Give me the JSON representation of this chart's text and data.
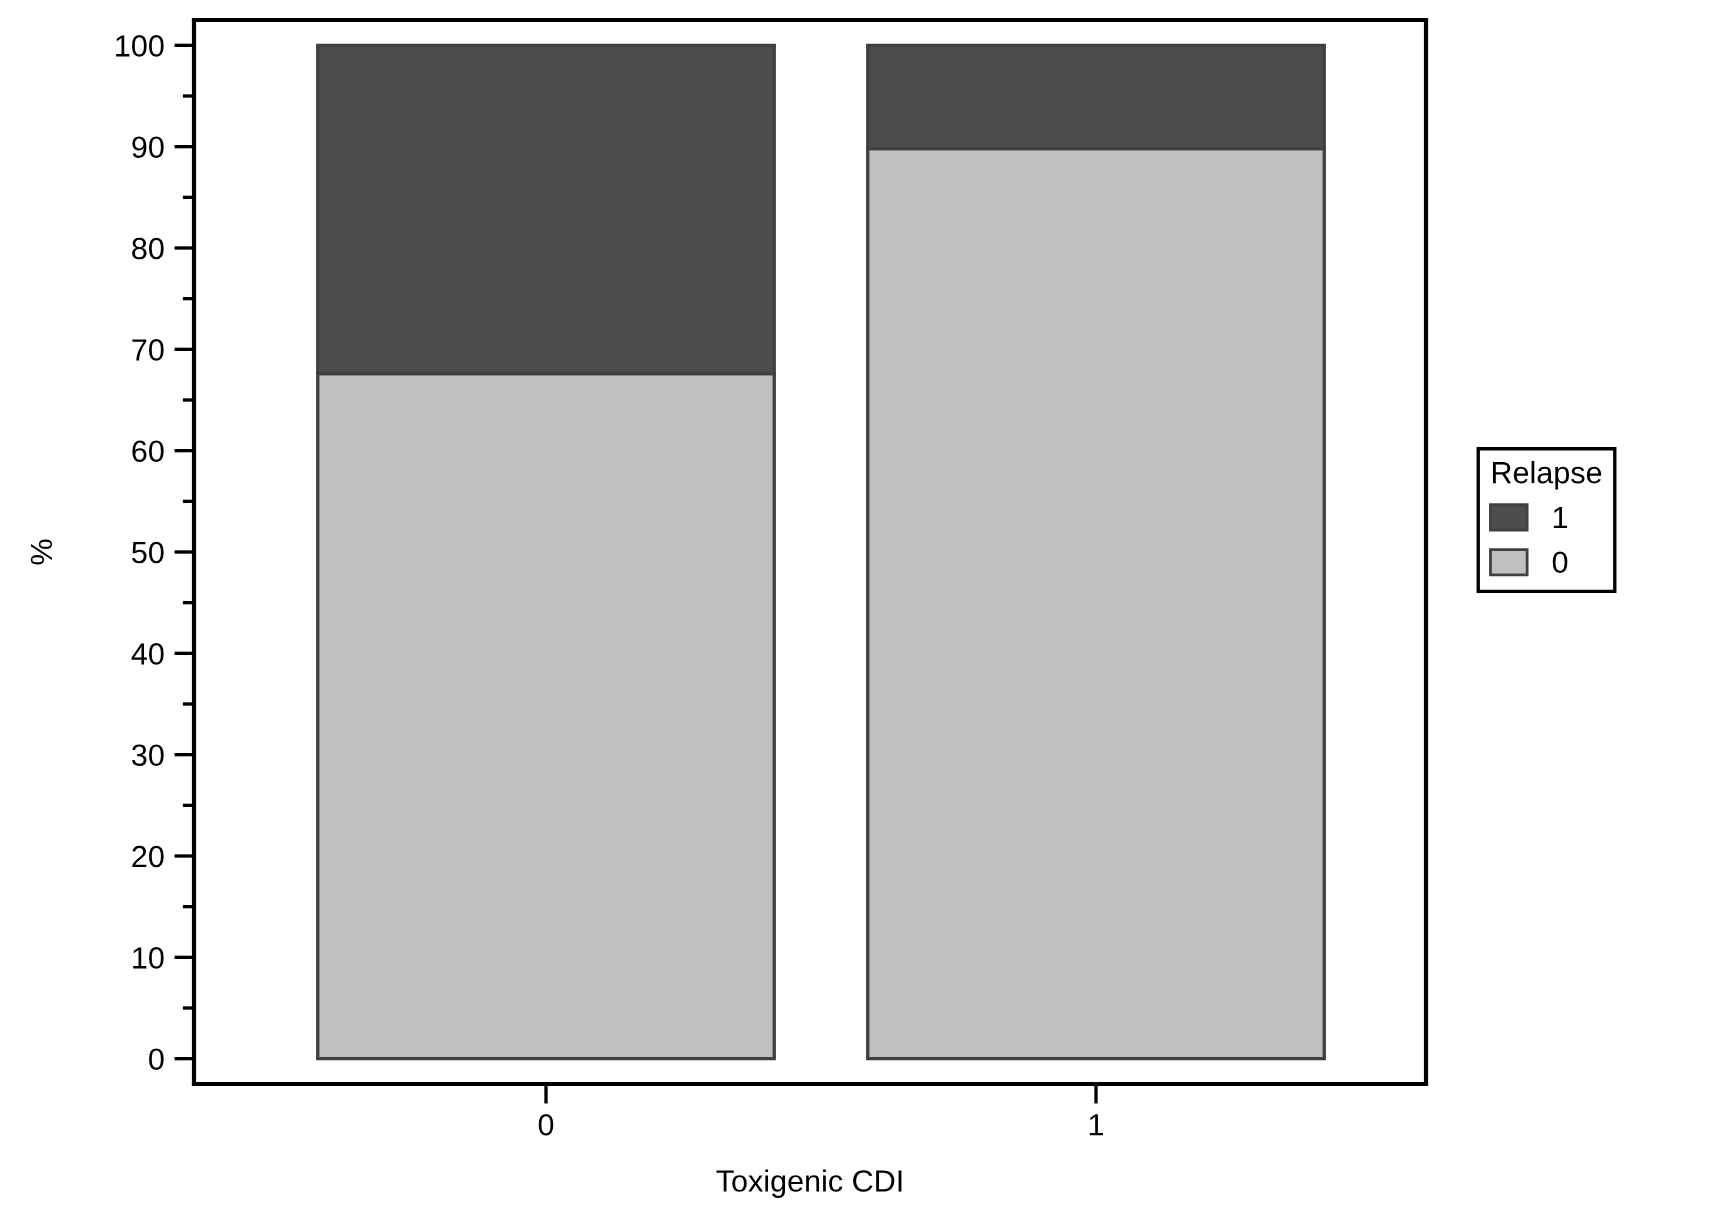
{
  "chart_data": {
    "type": "bar",
    "stacked": true,
    "xlabel": "Toxigenic CDI",
    "ylabel": "%",
    "legend_title": "Relapse",
    "legend": "right",
    "categories": [
      "0",
      "1"
    ],
    "series": [
      {
        "name": "0",
        "color": "#c0c0c0",
        "values": [
          67.6,
          89.8
        ]
      },
      {
        "name": "1",
        "color": "#4d4d4d",
        "values": [
          32.4,
          10.2
        ]
      }
    ],
    "ylim": [
      -2.5,
      102.5
    ],
    "yticks": [
      0,
      10,
      20,
      30,
      40,
      50,
      60,
      70,
      80,
      90,
      100
    ],
    "grid": false
  }
}
